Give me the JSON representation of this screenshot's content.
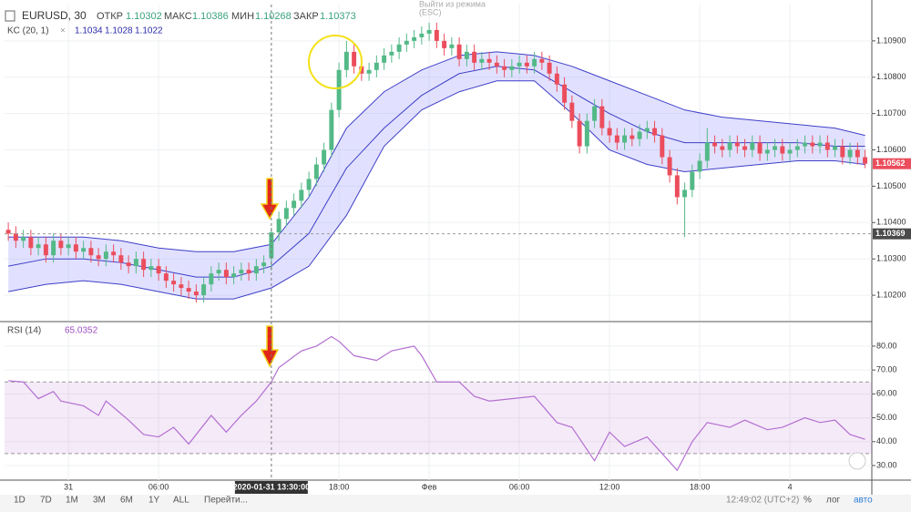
{
  "header": {
    "symbol": "EURUSD, 30",
    "open_label": "ОТКР",
    "high_label": "МАКС",
    "low_label": "МИН",
    "close_label": "ЗАКР",
    "kc_label": "KC (20, 1)",
    "rsi_label": "RSI (14)",
    "exit_hint": [
      "Выйти из режима",
      "(ESC)"
    ]
  },
  "toolbar": {
    "ranges": [
      "1D",
      "7D",
      "1M",
      "3M",
      "6M",
      "1Y",
      "ALL"
    ],
    "goto": "Перейти...",
    "clock": "12:49:02 (UTC+2)",
    "percent": "%",
    "log": "лог",
    "auto": "авто"
  },
  "chart_data": [
    {
      "type": "candlestick",
      "up_color": "#53b987",
      "down_color": "#eb4d5c",
      "xlim": [
        -0.5,
        114.9
      ],
      "ylim": [
        1.1013,
        1.11
      ],
      "xticks": [
        {
          "value": 8,
          "label": "31"
        },
        {
          "value": 20,
          "label": "06:00"
        },
        {
          "value": 44,
          "label": "18:00"
        },
        {
          "value": 56,
          "label": "Фев"
        },
        {
          "value": 68,
          "label": "06:00"
        },
        {
          "value": 80,
          "label": "12:00"
        },
        {
          "value": 92,
          "label": "18:00"
        },
        {
          "value": 104,
          "label": "4"
        }
      ],
      "yticks": [
        {
          "value": 1.102,
          "label": "1.10200"
        },
        {
          "value": 1.103,
          "label": "1.10300"
        },
        {
          "value": 1.104,
          "label": "1.10400"
        },
        {
          "value": 1.105,
          "label": "1.10500"
        },
        {
          "value": 1.106,
          "label": "1.10600"
        },
        {
          "value": 1.107,
          "label": "1.10700"
        },
        {
          "value": 1.108,
          "label": "1.10800"
        },
        {
          "value": 1.109,
          "label": "1.10900"
        }
      ],
      "crosshair": {
        "x": {
          "value": 35,
          "label": "2020-01-31 13:30:00"
        },
        "y": 1.10369
      },
      "last_price": 1.10562,
      "open": [
        1.1038,
        1.1037,
        1.1035,
        1.1036,
        1.1033,
        1.1034,
        1.1031,
        1.1035,
        1.1033,
        1.1034,
        1.1032,
        1.1033,
        1.1031,
        1.103,
        1.1032,
        1.1031,
        1.1029,
        1.1028,
        1.103,
        1.1027,
        1.1028,
        1.1026,
        1.1024,
        1.1023,
        1.1022,
        1.1021,
        1.102,
        1.1023,
        1.1026,
        1.1027,
        1.1025,
        1.1026,
        1.1027,
        1.1026,
        1.1028,
        1.10302,
        1.10373,
        1.1041,
        1.1044,
        1.1046,
        1.1049,
        1.1052,
        1.1056,
        1.106,
        1.1071,
        1.1082,
        1.1087,
        1.1083,
        1.1081,
        1.1082,
        1.1084,
        1.1086,
        1.1087,
        1.1089,
        1.109,
        1.1091,
        1.1092,
        1.1093,
        1.109,
        1.1088,
        1.1089,
        1.1085,
        1.1087,
        1.1084,
        1.1085,
        1.1084,
        1.1083,
        1.1082,
        1.1083,
        1.1084,
        1.1083,
        1.1085,
        1.1084,
        1.1081,
        1.1078,
        1.1073,
        1.1068,
        1.1061,
        1.1068,
        1.1072,
        1.1066,
        1.1064,
        1.1062,
        1.1064,
        1.1063,
        1.1065,
        1.1066,
        1.1064,
        1.1058,
        1.1053,
        1.1047,
        1.1049,
        1.1054,
        1.1057,
        1.1062,
        1.1061,
        1.106,
        1.1062,
        1.1061,
        1.106,
        1.1062,
        1.1059,
        1.106,
        1.1061,
        1.1059,
        1.106,
        1.1061,
        1.1062,
        1.1061,
        1.1062,
        1.106,
        1.1061,
        1.1058,
        1.106,
        1.1058
      ],
      "high": [
        1.104,
        1.1039,
        1.1038,
        1.1038,
        1.1036,
        1.1036,
        1.1037,
        1.1037,
        1.1036,
        1.1036,
        1.1035,
        1.1035,
        1.1033,
        1.1034,
        1.1034,
        1.1033,
        1.1031,
        1.1032,
        1.1032,
        1.103,
        1.103,
        1.1028,
        1.1026,
        1.1025,
        1.1024,
        1.1023,
        1.1025,
        1.1028,
        1.1029,
        1.1029,
        1.1028,
        1.1029,
        1.1029,
        1.103,
        1.1031,
        1.10386,
        1.1043,
        1.1046,
        1.1048,
        1.1051,
        1.1054,
        1.1058,
        1.1062,
        1.1073,
        1.1084,
        1.109,
        1.1089,
        1.1085,
        1.1084,
        1.1086,
        1.1088,
        1.1089,
        1.1091,
        1.1092,
        1.1093,
        1.1094,
        1.1095,
        1.1095,
        1.1092,
        1.1091,
        1.1091,
        1.1089,
        1.1089,
        1.1087,
        1.1087,
        1.1086,
        1.1085,
        1.1085,
        1.1086,
        1.1086,
        1.1087,
        1.1087,
        1.1086,
        1.1083,
        1.108,
        1.1075,
        1.107,
        1.107,
        1.1074,
        1.1074,
        1.1068,
        1.1066,
        1.1066,
        1.1066,
        1.1067,
        1.1068,
        1.1068,
        1.1066,
        1.106,
        1.1055,
        1.1051,
        1.1056,
        1.1059,
        1.1066,
        1.1064,
        1.1063,
        1.1064,
        1.1064,
        1.1063,
        1.1064,
        1.1064,
        1.1062,
        1.1063,
        1.1063,
        1.1062,
        1.1063,
        1.1064,
        1.1064,
        1.1064,
        1.1064,
        1.1063,
        1.1063,
        1.1062,
        1.1062,
        1.106
      ],
      "low": [
        1.1035,
        1.1033,
        1.1033,
        1.1031,
        1.1031,
        1.1029,
        1.1029,
        1.1031,
        1.1031,
        1.103,
        1.103,
        1.1029,
        1.1028,
        1.1028,
        1.1029,
        1.1027,
        1.1026,
        1.1026,
        1.1025,
        1.1025,
        1.1024,
        1.1022,
        1.1021,
        1.102,
        1.1019,
        1.1018,
        1.1018,
        1.1021,
        1.1024,
        1.1023,
        1.1023,
        1.1024,
        1.1024,
        1.1024,
        1.1026,
        1.10268,
        1.1035,
        1.1039,
        1.1042,
        1.1044,
        1.1047,
        1.105,
        1.1054,
        1.1058,
        1.1069,
        1.108,
        1.1081,
        1.1079,
        1.1079,
        1.108,
        1.1082,
        1.1084,
        1.1085,
        1.1087,
        1.1088,
        1.1089,
        1.109,
        1.1088,
        1.1086,
        1.1086,
        1.1083,
        1.1083,
        1.1082,
        1.1082,
        1.1082,
        1.1081,
        1.108,
        1.108,
        1.1081,
        1.1081,
        1.1081,
        1.1082,
        1.1079,
        1.1076,
        1.1071,
        1.1066,
        1.1059,
        1.1059,
        1.1066,
        1.1064,
        1.1062,
        1.106,
        1.106,
        1.1061,
        1.1061,
        1.1063,
        1.1062,
        1.1056,
        1.1051,
        1.1045,
        1.1036,
        1.1047,
        1.1052,
        1.1055,
        1.1059,
        1.1058,
        1.1058,
        1.1059,
        1.1058,
        1.1058,
        1.1057,
        1.1057,
        1.1058,
        1.1057,
        1.1057,
        1.1058,
        1.1059,
        1.1059,
        1.1059,
        1.1058,
        1.1058,
        1.1056,
        1.1056,
        1.1056,
        1.1055
      ],
      "close": [
        1.1037,
        1.1035,
        1.1036,
        1.1033,
        1.1034,
        1.1031,
        1.1035,
        1.1033,
        1.1034,
        1.1032,
        1.1033,
        1.1031,
        1.103,
        1.1032,
        1.1031,
        1.1029,
        1.1028,
        1.103,
        1.1027,
        1.1028,
        1.1026,
        1.1024,
        1.1023,
        1.1022,
        1.1021,
        1.102,
        1.1023,
        1.1026,
        1.1027,
        1.1025,
        1.1026,
        1.1027,
        1.1026,
        1.1028,
        1.1029,
        1.10373,
        1.1041,
        1.1044,
        1.1046,
        1.1049,
        1.1052,
        1.1056,
        1.106,
        1.1071,
        1.1082,
        1.1087,
        1.1083,
        1.1081,
        1.1082,
        1.1084,
        1.1086,
        1.1087,
        1.1089,
        1.109,
        1.1091,
        1.1092,
        1.1093,
        1.109,
        1.1088,
        1.1089,
        1.1085,
        1.1087,
        1.1084,
        1.1085,
        1.1084,
        1.1083,
        1.1082,
        1.1083,
        1.1084,
        1.1083,
        1.1085,
        1.1084,
        1.1081,
        1.1078,
        1.1073,
        1.1068,
        1.1061,
        1.1068,
        1.1072,
        1.1066,
        1.1064,
        1.1062,
        1.1064,
        1.1063,
        1.1065,
        1.1066,
        1.1064,
        1.1058,
        1.1053,
        1.1047,
        1.1049,
        1.1054,
        1.1057,
        1.1062,
        1.1061,
        1.106,
        1.1062,
        1.1061,
        1.106,
        1.1062,
        1.1059,
        1.106,
        1.1061,
        1.1059,
        1.106,
        1.1061,
        1.1062,
        1.1061,
        1.1062,
        1.106,
        1.1061,
        1.1058,
        1.106,
        1.1058,
        1.10562
      ],
      "band_color": "rgba(120,120,255,0.22)",
      "series": [
        {
          "color": "#3f3fc8",
          "x": [
            0,
            5,
            10,
            15,
            20,
            25,
            30,
            35,
            40,
            45,
            50,
            55,
            60,
            65,
            70,
            75,
            80,
            85,
            90,
            95,
            100,
            105,
            110,
            114
          ],
          "values": [
            1.1036,
            1.1036,
            1.1036,
            1.1035,
            1.1033,
            1.1032,
            1.1032,
            1.1034,
            1.1047,
            1.1066,
            1.1076,
            1.1082,
            1.1086,
            1.1087,
            1.1086,
            1.1083,
            1.1079,
            1.1075,
            1.1071,
            1.1069,
            1.1068,
            1.1067,
            1.1066,
            1.1064
          ]
        },
        {
          "color": "#3f3fc8",
          "x": [
            0,
            5,
            10,
            15,
            20,
            25,
            30,
            35,
            40,
            45,
            50,
            55,
            60,
            65,
            70,
            75,
            80,
            85,
            90,
            95,
            100,
            105,
            110,
            114
          ],
          "values": [
            1.1028,
            1.103,
            1.103,
            1.1029,
            1.1027,
            1.1025,
            1.1025,
            1.1028,
            1.1037,
            1.1055,
            1.1066,
            1.1075,
            1.1081,
            1.1083,
            1.1082,
            1.1076,
            1.107,
            1.1065,
            1.1062,
            1.1062,
            1.1062,
            1.1062,
            1.1061,
            1.1061
          ]
        },
        {
          "color": "#3f3fc8",
          "x": [
            0,
            5,
            10,
            15,
            20,
            25,
            30,
            35,
            40,
            45,
            50,
            55,
            60,
            65,
            70,
            75,
            80,
            85,
            90,
            95,
            100,
            105,
            110,
            114
          ],
          "values": [
            1.1021,
            1.1023,
            1.1024,
            1.1023,
            1.1021,
            1.1019,
            1.1019,
            1.1022,
            1.1028,
            1.1042,
            1.1061,
            1.1071,
            1.1076,
            1.1079,
            1.1079,
            1.107,
            1.106,
            1.1056,
            1.1054,
            1.1055,
            1.1056,
            1.1057,
            1.1057,
            1.1056
          ]
        }
      ]
    },
    {
      "type": "line",
      "xlim": [
        -0.5,
        114.9
      ],
      "ylim": [
        23.9,
        89.5
      ],
      "yticks": [
        {
          "value": 30,
          "label": "30.00"
        },
        {
          "value": 40,
          "label": "40.00"
        },
        {
          "value": 50,
          "label": "50.00"
        },
        {
          "value": 60,
          "label": "60.00"
        },
        {
          "value": 70,
          "label": "70.00"
        },
        {
          "value": 80,
          "label": "80.00"
        }
      ],
      "band": [
        35,
        65
      ],
      "band_color": "rgba(176,80,200,0.12)",
      "series": [
        {
          "color": "#b36fd1",
          "x": [
            0,
            2,
            4,
            6,
            7,
            10,
            12,
            13,
            16,
            18,
            20,
            22,
            24,
            27,
            29,
            31,
            33,
            35,
            36,
            39,
            41,
            43,
            44,
            46,
            49,
            51,
            54,
            55,
            57,
            60,
            62,
            64,
            67,
            70,
            73,
            75,
            78,
            80,
            82,
            85,
            87,
            89,
            91,
            93,
            96,
            98,
            101,
            103,
            106,
            108,
            110,
            112,
            114
          ],
          "values": [
            65.5,
            65,
            58,
            61,
            57,
            55,
            51,
            57,
            49,
            43,
            42,
            46,
            39,
            51,
            44,
            51,
            57,
            65.0352,
            71,
            78,
            80,
            84,
            82,
            76,
            74,
            78,
            80,
            76,
            65,
            65,
            59,
            57,
            58,
            59,
            48,
            46,
            32,
            44,
            38,
            42,
            35,
            28,
            40,
            48,
            46,
            49,
            45,
            46,
            50,
            48,
            49,
            43,
            41
          ]
        }
      ]
    }
  ]
}
